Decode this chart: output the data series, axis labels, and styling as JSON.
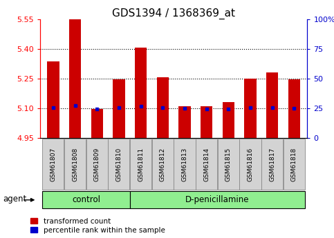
{
  "title": "GDS1394 / 1368369_at",
  "samples": [
    "GSM61807",
    "GSM61808",
    "GSM61809",
    "GSM61810",
    "GSM61811",
    "GSM61812",
    "GSM61813",
    "GSM61814",
    "GSM61815",
    "GSM61816",
    "GSM61817",
    "GSM61818"
  ],
  "bar_values": [
    5.335,
    5.55,
    5.095,
    5.245,
    5.405,
    5.255,
    5.11,
    5.11,
    5.13,
    5.25,
    5.28,
    5.245
  ],
  "percentile_values": [
    5.105,
    5.115,
    5.095,
    5.105,
    5.11,
    5.105,
    5.1,
    5.095,
    5.095,
    5.105,
    5.105,
    5.1
  ],
  "bar_base": 4.95,
  "ylim_left": [
    4.95,
    5.55
  ],
  "ylim_right": [
    0,
    100
  ],
  "yticks_left": [
    4.95,
    5.1,
    5.25,
    5.4,
    5.55
  ],
  "yticks_right": [
    0,
    25,
    50,
    75,
    100
  ],
  "grid_lines": [
    5.1,
    5.25,
    5.4
  ],
  "bar_color": "#cc0000",
  "blue_color": "#0000cc",
  "control_samples": 4,
  "control_label": "control",
  "treatment_label": "D-penicillamine",
  "group_bg_color": "#90ee90",
  "agent_label": "agent",
  "legend_bar_label": "transformed count",
  "legend_blue_label": "percentile rank within the sample",
  "bar_width": 0.55,
  "title_fontsize": 11,
  "tick_fontsize": 8,
  "label_fontsize": 8.5,
  "sample_box_color": "#d3d3d3",
  "sample_box_edge": "#888888"
}
